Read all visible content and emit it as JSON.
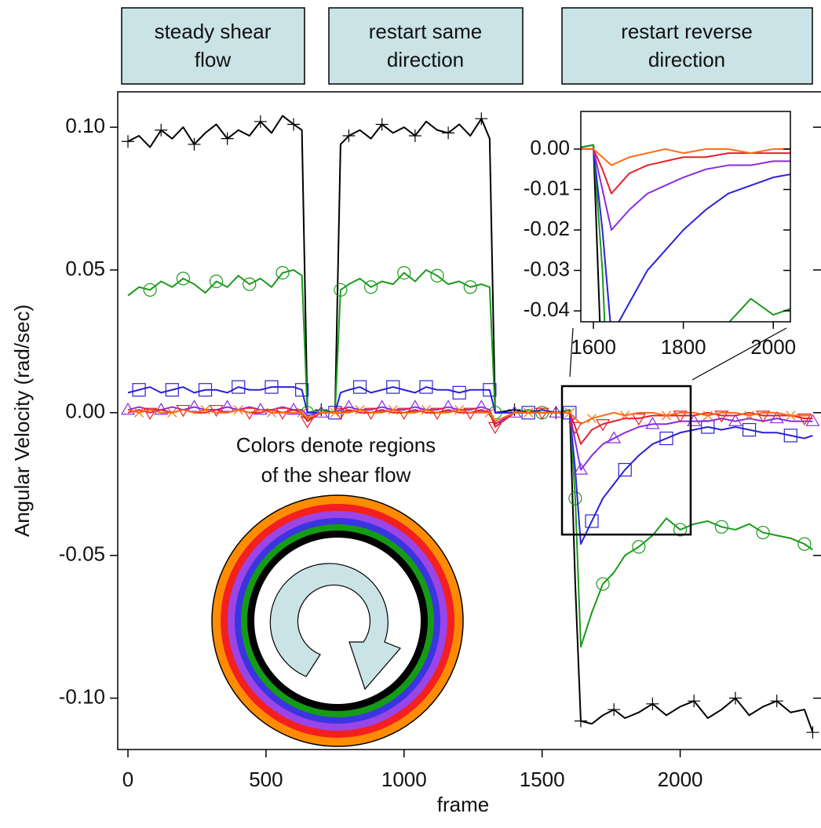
{
  "chart_data": {
    "type": "line",
    "xlabel": "frame",
    "ylabel": "Angular Velocity (rad/sec)",
    "phases": [
      [
        "steady shear",
        "flow"
      ],
      [
        "restart same",
        "direction"
      ],
      [
        "restart reverse",
        "direction"
      ]
    ],
    "annotation": [
      "Colors denote regions",
      "of the shear flow"
    ],
    "xlim": [
      -37,
      2510
    ],
    "ylim": [
      -0.118,
      0.1124
    ],
    "xticks": [
      0,
      500,
      1000,
      1500,
      2000
    ],
    "yticks": [
      {
        "value": 0.1,
        "label": "0.10"
      },
      {
        "value": 0.05,
        "label": "0.05"
      },
      {
        "value": 0,
        "label": "0.00"
      },
      {
        "value": -0.05,
        "label": "-0.05"
      },
      {
        "value": -0.1,
        "label": "-0.10"
      }
    ],
    "x": [
      0,
      40,
      80,
      120,
      160,
      200,
      240,
      280,
      320,
      360,
      400,
      440,
      480,
      520,
      560,
      600,
      630,
      650,
      700,
      750,
      770,
      800,
      840,
      880,
      920,
      960,
      1000,
      1040,
      1080,
      1120,
      1160,
      1200,
      1240,
      1280,
      1310,
      1330,
      1400,
      1450,
      1500,
      1550,
      1600,
      1620,
      1640,
      1680,
      1720,
      1760,
      1800,
      1850,
      1900,
      1950,
      2000,
      2050,
      2100,
      2150,
      2200,
      2250,
      2300,
      2350,
      2400,
      2450,
      2480
    ],
    "series": [
      {
        "color": "#000000",
        "marker": "plus",
        "values": [
          0.095,
          0.097,
          0.093,
          0.099,
          0.096,
          0.1,
          0.094,
          0.098,
          0.101,
          0.096,
          0.099,
          0.097,
          0.102,
          0.098,
          0.104,
          0.101,
          0.099,
          0.0,
          0.001,
          0.0,
          0.094,
          0.097,
          0.099,
          0.096,
          0.101,
          0.098,
          0.1,
          0.097,
          0.102,
          0.099,
          0.098,
          0.101,
          0.097,
          0.103,
          0.096,
          0.0,
          0.001,
          0,
          0.001,
          0,
          0.001,
          -0.06,
          -0.108,
          -0.109,
          -0.106,
          -0.104,
          -0.107,
          -0.105,
          -0.102,
          -0.106,
          -0.103,
          -0.101,
          -0.107,
          -0.104,
          -0.1,
          -0.106,
          -0.103,
          -0.101,
          -0.105,
          -0.104,
          -0.112
        ]
      },
      {
        "color": "#1a9a1a",
        "marker": "circle",
        "values": [
          0.041,
          0.044,
          0.043,
          0.046,
          0.044,
          0.047,
          0.045,
          0.042,
          0.046,
          0.044,
          0.048,
          0.045,
          0.047,
          0.044,
          0.049,
          0.05,
          0.048,
          0.0,
          0.001,
          0.0,
          0.043,
          0.045,
          0.047,
          0.044,
          0.046,
          0.045,
          0.049,
          0.046,
          0.05,
          0.048,
          0.045,
          0.046,
          0.044,
          0.045,
          0.044,
          0.0,
          0,
          0.001,
          0,
          0,
          0.001,
          -0.03,
          -0.082,
          -0.07,
          -0.06,
          -0.056,
          -0.05,
          -0.047,
          -0.043,
          -0.037,
          -0.041,
          -0.039,
          -0.038,
          -0.04,
          -0.041,
          -0.039,
          -0.042,
          -0.043,
          -0.044,
          -0.046,
          -0.048
        ]
      },
      {
        "color": "#2b22d6",
        "marker": "square",
        "values": [
          0.007,
          0.008,
          0.009,
          0.007,
          0.008,
          0.009,
          0.007,
          0.008,
          0.008,
          0.007,
          0.009,
          0.008,
          0.008,
          0.009,
          0.009,
          0.009,
          0.008,
          0,
          0,
          0,
          0.007,
          0.008,
          0.009,
          0.007,
          0.008,
          0.009,
          0.008,
          0.007,
          0.009,
          0.008,
          0.008,
          0.007,
          0.008,
          0.008,
          0.008,
          0,
          0,
          0,
          0.001,
          0,
          0,
          -0.02,
          -0.046,
          -0.038,
          -0.03,
          -0.025,
          -0.02,
          -0.015,
          -0.011,
          -0.009,
          -0.007,
          -0.006,
          -0.005,
          -0.006,
          -0.005,
          -0.006,
          -0.007,
          -0.007,
          -0.008,
          -0.009,
          -0.008
        ]
      },
      {
        "color": "#8a2be2",
        "marker": "triangle",
        "values": [
          0.001,
          0.002,
          0.001,
          0.001,
          0.002,
          0.001,
          0.002,
          0.001,
          0.001,
          0.002,
          0.001,
          0.002,
          0.001,
          0.001,
          0.002,
          0.001,
          0.001,
          -0.001,
          0,
          0,
          0.001,
          0.002,
          0.001,
          0.001,
          0.002,
          0.001,
          0.001,
          0.002,
          0.001,
          0.001,
          0.002,
          0.001,
          0.001,
          0.002,
          0.001,
          -0.004,
          0,
          0,
          0,
          0,
          0,
          -0.01,
          -0.02,
          -0.015,
          -0.011,
          -0.009,
          -0.007,
          -0.005,
          -0.004,
          -0.004,
          -0.003,
          -0.003,
          -0.003,
          -0.002,
          -0.003,
          -0.002,
          -0.003,
          -0.002,
          -0.003,
          -0.003,
          -0.003
        ]
      },
      {
        "color": "#e8202a",
        "marker": "down-triangle",
        "values": [
          0,
          0.001,
          0,
          0.001,
          0,
          0.001,
          0,
          0,
          0.001,
          0,
          0.001,
          0,
          0,
          0.001,
          0,
          0.001,
          0,
          -0.003,
          0,
          0,
          0,
          0.001,
          0,
          0,
          0.001,
          0,
          0,
          0.001,
          0,
          0,
          0.001,
          0,
          0,
          0.001,
          0,
          -0.005,
          0,
          0,
          0,
          0,
          0,
          -0.005,
          -0.011,
          -0.006,
          -0.004,
          -0.003,
          -0.002,
          -0.002,
          -0.001,
          -0.001,
          -0.001,
          -0.001,
          0,
          -0.001,
          -0.001,
          0,
          -0.001,
          -0.001,
          -0.001,
          -0.002,
          -0.002
        ]
      },
      {
        "color": "#ff6a10",
        "marker": "x",
        "values": [
          0.001,
          0,
          0.001,
          0,
          0,
          0.001,
          0,
          0.001,
          0,
          0,
          0.001,
          0,
          0.001,
          0,
          0,
          0,
          0,
          -0.002,
          0,
          0,
          0,
          0,
          0.001,
          0,
          0,
          0.001,
          0,
          0,
          0.001,
          0,
          0,
          0.001,
          0,
          0,
          0,
          -0.003,
          0,
          0,
          0,
          0,
          0,
          -0.002,
          -0.004,
          -0.002,
          -0.001,
          0,
          -0.001,
          0,
          0,
          -0.001,
          0,
          0,
          -0.001,
          0,
          0,
          -0.001,
          0,
          0,
          -0.001,
          -0.001,
          -0.001
        ]
      }
    ],
    "inset": {
      "xlim": [
        1572,
        2038
      ],
      "ylim": [
        -0.0427,
        0.0093
      ],
      "xticks": [
        1600,
        1800,
        2000
      ],
      "yticks": [
        {
          "value": 0,
          "label": "0.00"
        },
        {
          "value": -0.01,
          "label": "-0.01"
        },
        {
          "value": -0.02,
          "label": "-0.02"
        },
        {
          "value": -0.03,
          "label": "-0.03"
        },
        {
          "value": -0.04,
          "label": "-0.04"
        }
      ]
    }
  }
}
